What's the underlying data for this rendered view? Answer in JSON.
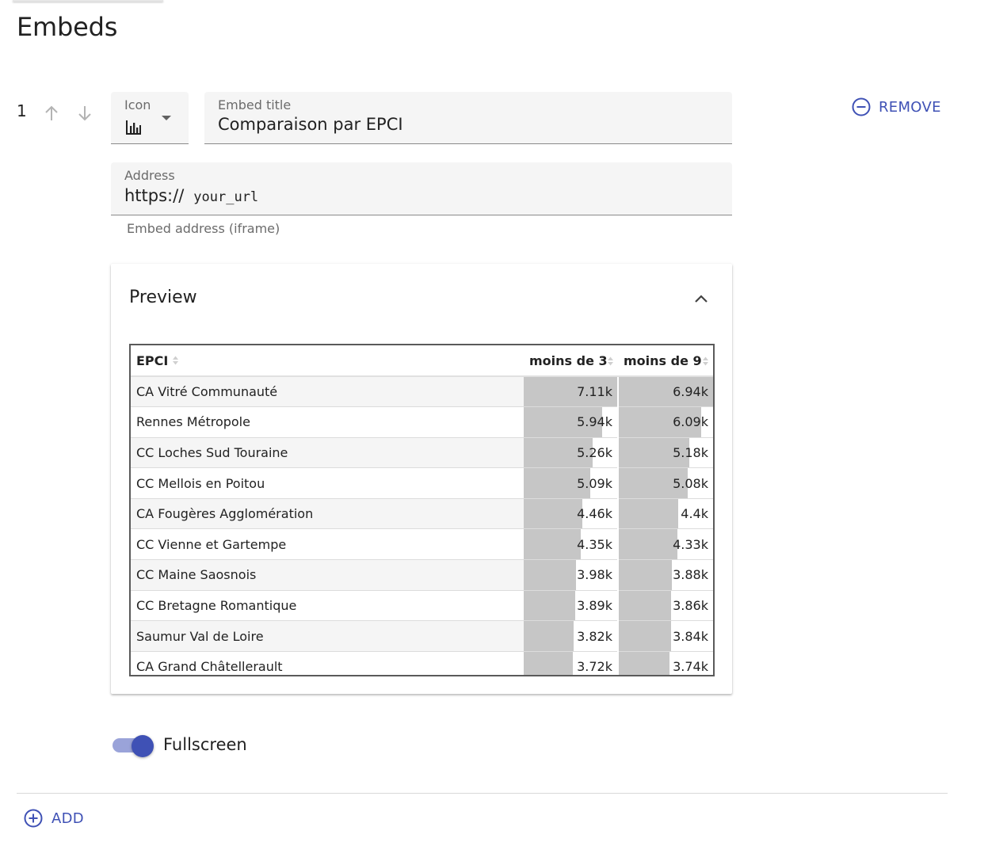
{
  "page": {
    "title": "Embeds"
  },
  "embed": {
    "index": "1",
    "icon_field": {
      "label": "Icon",
      "selected_icon": "bar-chart-icon"
    },
    "title_field": {
      "label": "Embed title",
      "value": "Comparaison par EPCI"
    },
    "address_field": {
      "label": "Address",
      "prefix": "https://",
      "value": "your_url",
      "helper": "Embed address (iframe)"
    },
    "remove_label": "REMOVE",
    "preview": {
      "title": "Preview",
      "table": {
        "headers": [
          "EPCI",
          "moins de 3",
          "moins de 9"
        ],
        "rows": [
          {
            "name": "CA Vitré Communauté",
            "v1": "7.11k",
            "v2": "6.94k",
            "f1": 1.0,
            "f2": 1.0
          },
          {
            "name": "Rennes Métropole",
            "v1": "5.94k",
            "v2": "6.09k",
            "f1": 0.835,
            "f2": 0.878
          },
          {
            "name": "CC Loches Sud Touraine",
            "v1": "5.26k",
            "v2": "5.18k",
            "f1": 0.74,
            "f2": 0.746
          },
          {
            "name": "CC Mellois en Poitou",
            "v1": "5.09k",
            "v2": "5.08k",
            "f1": 0.716,
            "f2": 0.732
          },
          {
            "name": "CA Fougères Agglomération",
            "v1": "4.46k",
            "v2": "4.4k",
            "f1": 0.627,
            "f2": 0.634
          },
          {
            "name": "CC Vienne et Gartempe",
            "v1": "4.35k",
            "v2": "4.33k",
            "f1": 0.612,
            "f2": 0.624
          },
          {
            "name": "CC Maine Saosnois",
            "v1": "3.98k",
            "v2": "3.88k",
            "f1": 0.56,
            "f2": 0.559
          },
          {
            "name": "CC Bretagne Romantique",
            "v1": "3.89k",
            "v2": "3.86k",
            "f1": 0.547,
            "f2": 0.556
          },
          {
            "name": "Saumur Val de Loire",
            "v1": "3.82k",
            "v2": "3.84k",
            "f1": 0.537,
            "f2": 0.553
          },
          {
            "name": "CA Grand Châtellerault",
            "v1": "3.72k",
            "v2": "3.74k",
            "f1": 0.523,
            "f2": 0.539
          }
        ]
      }
    },
    "fullscreen": {
      "label": "Fullscreen",
      "enabled": true
    }
  },
  "add_label": "ADD",
  "colors": {
    "accent": "#3f51b5",
    "bar": "#c6c6c6",
    "toggle_track": "#9aa3d9"
  }
}
